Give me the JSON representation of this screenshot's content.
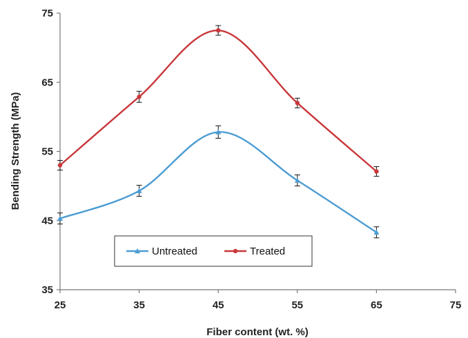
{
  "chart_data": {
    "type": "line",
    "title": "",
    "xlabel": "Fiber content (wt. %)",
    "ylabel": "Bending Strength (MPa)",
    "xlim": [
      25,
      75
    ],
    "ylim": [
      35,
      75
    ],
    "xticks": [
      25,
      35,
      45,
      55,
      65,
      75
    ],
    "yticks": [
      35,
      45,
      55,
      65,
      75
    ],
    "grid": false,
    "legend_placement": "bottom-left",
    "smooth": true,
    "series": [
      {
        "name": "Untreated",
        "color": "#4b9cd3",
        "marker": "triangle",
        "x": [
          25,
          35,
          45,
          55,
          65
        ],
        "y": [
          45.3,
          49.3,
          57.8,
          50.8,
          43.3
        ],
        "error": [
          0.8,
          0.8,
          0.9,
          0.8,
          0.8
        ]
      },
      {
        "name": "Treated",
        "color": "#c8373a",
        "marker": "circle",
        "x": [
          25,
          35,
          45,
          55,
          65
        ],
        "y": [
          53.0,
          62.9,
          72.5,
          62.0,
          52.1
        ],
        "error": [
          0.7,
          0.8,
          0.7,
          0.7,
          0.7
        ]
      }
    ]
  }
}
